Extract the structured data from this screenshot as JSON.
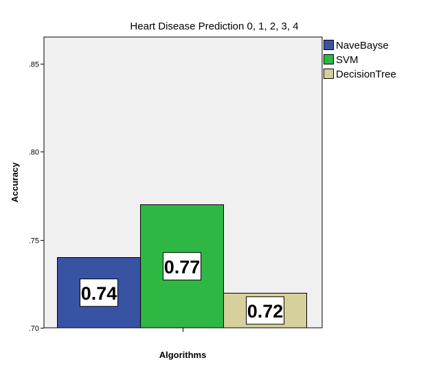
{
  "chart_data": {
    "type": "bar",
    "title": "Heart Disease Prediction 0, 1, 2, 3, 4",
    "xlabel": "Algorithms",
    "ylabel": "Accuracy",
    "ylim": [
      0.7,
      0.865
    ],
    "yticks": [
      ".70",
      ".75",
      ".80",
      ".85"
    ],
    "ytick_values": [
      0.7,
      0.75,
      0.8,
      0.85
    ],
    "grid": false,
    "legend_position": "top-right",
    "series": [
      {
        "name": "NaveBayse",
        "value": 0.74,
        "label": "0.74",
        "color": "#3953A4"
      },
      {
        "name": "SVM",
        "value": 0.77,
        "label": "0.77",
        "color": "#2FB744"
      },
      {
        "name": "DecisionTree",
        "value": 0.72,
        "label": "0.72",
        "color": "#D6D09D"
      }
    ]
  },
  "colors": {
    "plot_background": "#F0F0F0",
    "axis": "#000000",
    "bar_outline": "#000000"
  }
}
